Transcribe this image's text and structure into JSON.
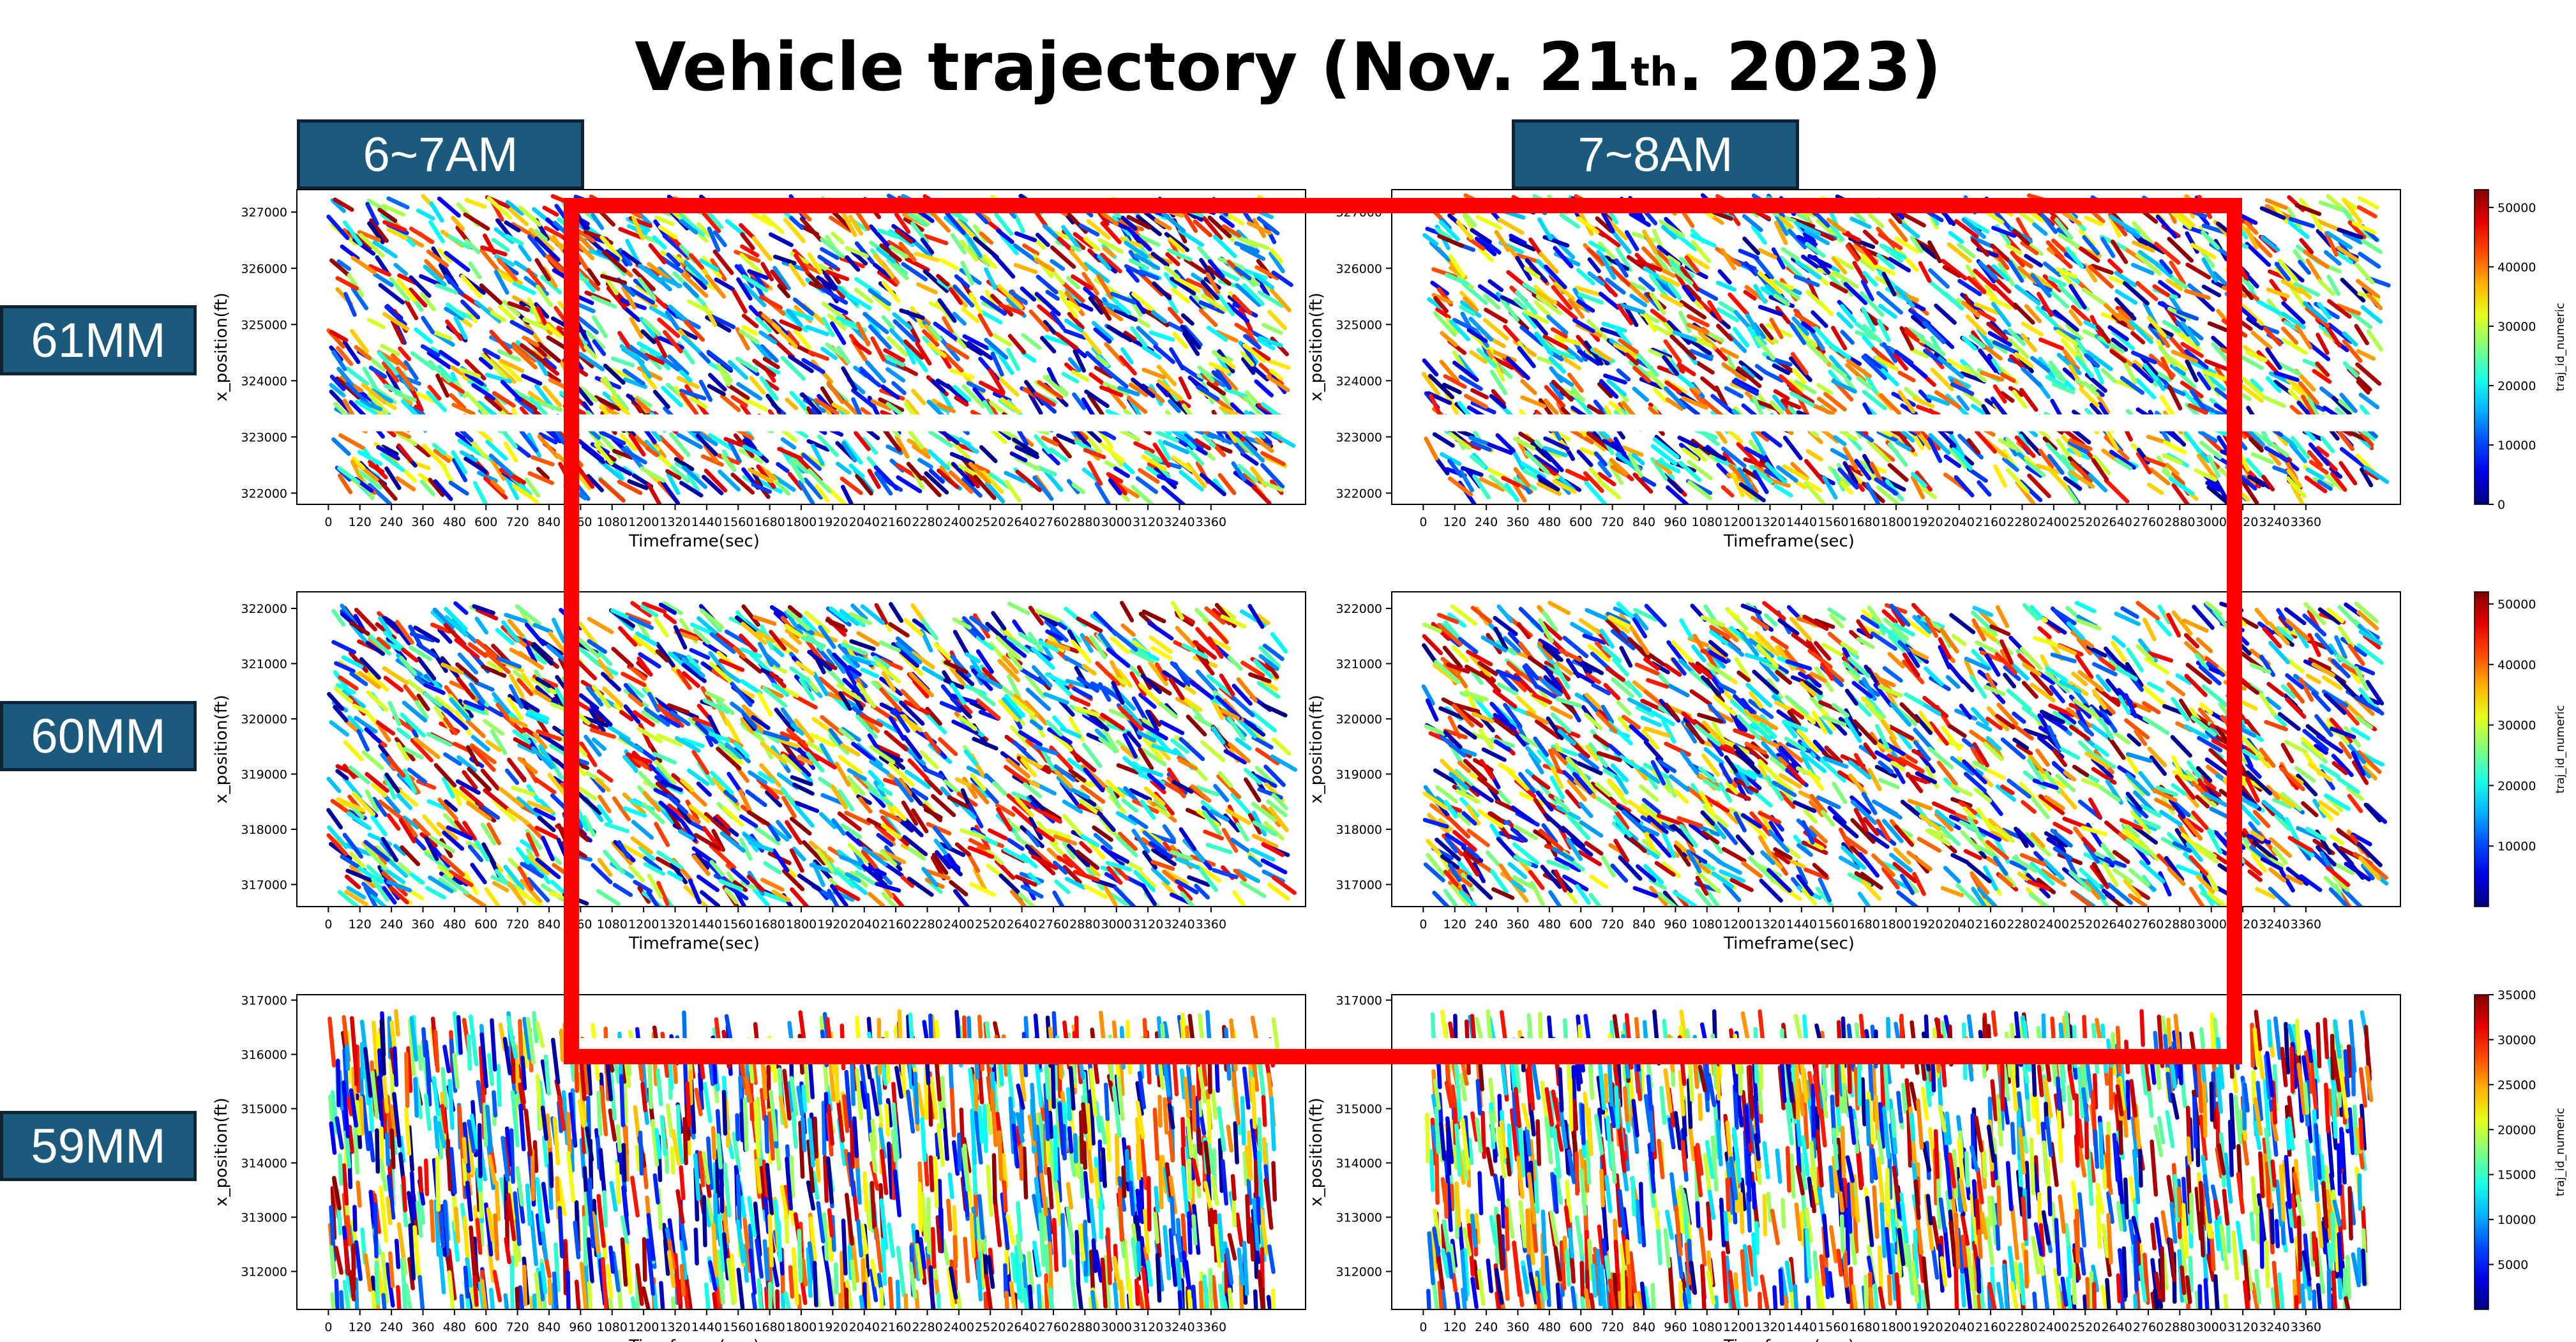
{
  "slide": {
    "title_main": "Vehicle trajectory (Nov. 21",
    "title_sup": "th",
    "title_end": ". 2023)",
    "columns": [
      {
        "label": "6~7AM"
      },
      {
        "label": "7~8AM"
      }
    ],
    "rows": [
      {
        "label": "61MM"
      },
      {
        "label": "60MM"
      },
      {
        "label": "59MM"
      }
    ],
    "highlight_color": "#ff0000",
    "colormap": "jet",
    "box_color": "#1b5a7c"
  },
  "chart_data": [
    {
      "type": "scatter",
      "panel": "61MM 6~7AM",
      "xlabel": "Timeframe(sec)",
      "ylabel": "x_position(ft)",
      "xlim": [
        -120,
        3720
      ],
      "ylim": [
        321800,
        327400
      ],
      "x_ticks": [
        0,
        120,
        240,
        360,
        480,
        600,
        720,
        840,
        960,
        1080,
        1200,
        1320,
        1440,
        1560,
        1680,
        1800,
        1920,
        2040,
        2160,
        2280,
        2400,
        2520,
        2640,
        2760,
        2880,
        3000,
        3120,
        3240,
        3360
      ],
      "y_ticks": [
        322000,
        323000,
        324000,
        325000,
        326000,
        327000
      ],
      "data_extent": {
        "x": [
          0,
          3600
        ],
        "y": [
          322100,
          327300
        ]
      },
      "gap_y": [
        323100,
        323400
      ],
      "gap_x": null,
      "colorbar": null
    },
    {
      "type": "scatter",
      "panel": "61MM 7~8AM",
      "xlabel": "Timeframe(sec)",
      "ylabel": "x_position(ft)",
      "xlim": [
        -120,
        3720
      ],
      "ylim": [
        321800,
        327400
      ],
      "x_ticks": [
        0,
        120,
        240,
        360,
        480,
        600,
        720,
        840,
        960,
        1080,
        1200,
        1320,
        1440,
        1560,
        1680,
        1800,
        1920,
        2040,
        2160,
        2280,
        2400,
        2520,
        2640,
        2760,
        2880,
        3000,
        3120,
        3240,
        3360
      ],
      "y_ticks": [
        322000,
        323000,
        324000,
        325000,
        326000,
        327000
      ],
      "data_extent": {
        "x": [
          0,
          3600
        ],
        "y": [
          322100,
          327300
        ]
      },
      "gap_y": [
        323100,
        323400
      ],
      "gap_x": null,
      "colorbar": {
        "label": "traj_id_numeric",
        "min": 0,
        "max": 53000,
        "ticks": [
          0,
          10000,
          20000,
          30000,
          40000,
          50000
        ]
      }
    },
    {
      "type": "scatter",
      "panel": "60MM 6~7AM",
      "xlabel": "Timeframe(sec)",
      "ylabel": "x_position(ft)",
      "xlim": [
        -120,
        3720
      ],
      "ylim": [
        316600,
        322300
      ],
      "x_ticks": [
        0,
        120,
        240,
        360,
        480,
        600,
        720,
        840,
        960,
        1080,
        1200,
        1320,
        1440,
        1560,
        1680,
        1800,
        1920,
        2040,
        2160,
        2280,
        2400,
        2520,
        2640,
        2760,
        2880,
        3000,
        3120,
        3240,
        3360
      ],
      "y_ticks": [
        317000,
        318000,
        319000,
        320000,
        321000,
        322000
      ],
      "data_extent": {
        "x": [
          0,
          3600
        ],
        "y": [
          316800,
          322100
        ]
      },
      "gap_y": null,
      "gap_x": null,
      "colorbar": null
    },
    {
      "type": "scatter",
      "panel": "60MM 7~8AM",
      "xlabel": "Timeframe(sec)",
      "ylabel": "x_position(ft)",
      "xlim": [
        -120,
        3720
      ],
      "ylim": [
        316600,
        322300
      ],
      "x_ticks": [
        0,
        120,
        240,
        360,
        480,
        600,
        720,
        840,
        960,
        1080,
        1200,
        1320,
        1440,
        1560,
        1680,
        1800,
        1920,
        2040,
        2160,
        2280,
        2400,
        2520,
        2640,
        2760,
        2880,
        3000,
        3120,
        3240,
        3360
      ],
      "y_ticks": [
        317000,
        318000,
        319000,
        320000,
        321000,
        322000
      ],
      "data_extent": {
        "x": [
          0,
          3600
        ],
        "y": [
          316800,
          322100
        ]
      },
      "gap_y": null,
      "gap_x": null,
      "colorbar": {
        "label": "traj_id_numeric",
        "min": 0,
        "max": 52000,
        "ticks": [
          10000,
          20000,
          30000,
          40000,
          50000
        ]
      }
    },
    {
      "type": "scatter",
      "panel": "59MM 6~7AM",
      "xlabel": "Timeframe(sec)",
      "ylabel": "x_position(ft)",
      "xlim": [
        -120,
        3720
      ],
      "ylim": [
        311300,
        317100
      ],
      "x_ticks": [
        0,
        120,
        240,
        360,
        480,
        600,
        720,
        840,
        960,
        1080,
        1200,
        1320,
        1440,
        1560,
        1680,
        1800,
        1920,
        2040,
        2160,
        2280,
        2400,
        2520,
        2640,
        2760,
        2880,
        3000,
        3120,
        3240,
        3360
      ],
      "y_ticks": [
        312000,
        313000,
        314000,
        315000,
        316000,
        317000
      ],
      "data_extent": {
        "x": [
          0,
          3600
        ],
        "y": [
          311500,
          316800
        ]
      },
      "gap_y": [
        316000,
        316300
      ],
      "gap_x": [
        900,
        3600
      ],
      "colorbar": null
    },
    {
      "type": "scatter",
      "panel": "59MM 7~8AM",
      "xlabel": "Timeframe(sec)",
      "ylabel": "x_position(ft)",
      "xlim": [
        -120,
        3720
      ],
      "ylim": [
        311300,
        317100
      ],
      "x_ticks": [
        0,
        120,
        240,
        360,
        480,
        600,
        720,
        840,
        960,
        1080,
        1200,
        1320,
        1440,
        1560,
        1680,
        1800,
        1920,
        2040,
        2160,
        2280,
        2400,
        2520,
        2640,
        2760,
        2880,
        3000,
        3120,
        3240,
        3360
      ],
      "y_ticks": [
        312000,
        313000,
        314000,
        315000,
        316000,
        317000
      ],
      "data_extent": {
        "x": [
          0,
          3600
        ],
        "y": [
          311500,
          316800
        ]
      },
      "gap_y": [
        316000,
        316300
      ],
      "gap_x": [
        0,
        2600
      ],
      "colorbar": {
        "label": "traj_id_numeric",
        "min": 0,
        "max": 35000,
        "ticks": [
          5000,
          10000,
          15000,
          20000,
          25000,
          30000,
          35000
        ]
      }
    }
  ]
}
